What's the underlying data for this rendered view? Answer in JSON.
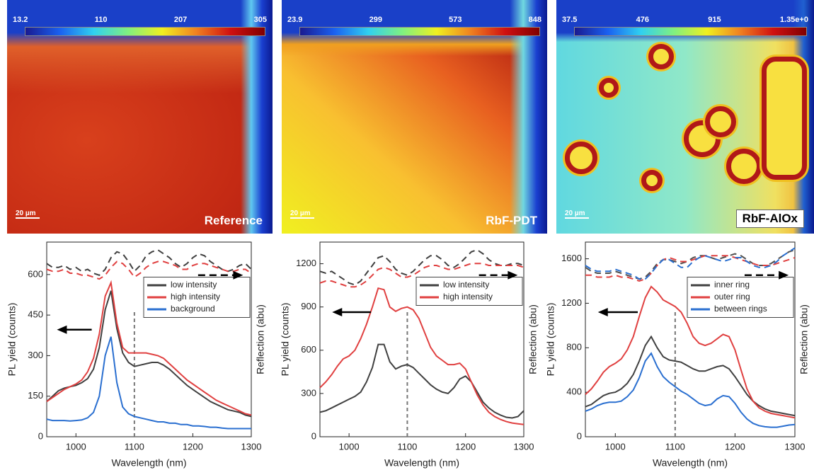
{
  "maps": [
    {
      "colorbar_labels": [
        "13.2",
        "110",
        "207",
        "305"
      ],
      "scale_bar": "20 µm",
      "label": "Reference"
    },
    {
      "colorbar_labels": [
        "23.9",
        "299",
        "573",
        "848"
      ],
      "scale_bar": "20 µm",
      "label": "RbF-PDT"
    },
    {
      "colorbar_labels": [
        "37.5",
        "476",
        "915",
        "1.35e+0"
      ],
      "scale_bar": "20 µm",
      "label": "RbF-AlOx"
    }
  ],
  "chart_data": [
    {
      "type": "line",
      "xlabel": "Wavelength (nm)",
      "ylabel": "PL yield (counts)",
      "y2label": "Reflection (abu)",
      "xlim": [
        950,
        1300
      ],
      "xticks": [
        1000,
        1100,
        1200,
        1300
      ],
      "ylim": [
        0,
        720
      ],
      "yticks": [
        0,
        150,
        300,
        450,
        600
      ],
      "y2lim": [
        0,
        1
      ],
      "vline": 1100,
      "legend": "right",
      "x": [
        950,
        960,
        970,
        980,
        990,
        1000,
        1010,
        1020,
        1030,
        1040,
        1050,
        1060,
        1070,
        1080,
        1090,
        1100,
        1110,
        1120,
        1130,
        1140,
        1150,
        1160,
        1170,
        1180,
        1190,
        1200,
        1210,
        1220,
        1230,
        1240,
        1250,
        1260,
        1270,
        1280,
        1290,
        1300
      ],
      "series": [
        {
          "name": "low intensity",
          "color": "#404040",
          "values": [
            130,
            150,
            170,
            180,
            185,
            190,
            200,
            215,
            250,
            330,
            470,
            540,
            400,
            310,
            275,
            260,
            265,
            270,
            275,
            275,
            265,
            250,
            230,
            210,
            190,
            175,
            160,
            145,
            130,
            120,
            110,
            100,
            95,
            90,
            80,
            75
          ]
        },
        {
          "name": "high intensity",
          "color": "#e04040",
          "values": [
            130,
            145,
            160,
            175,
            185,
            195,
            210,
            240,
            290,
            380,
            520,
            570,
            420,
            330,
            310,
            310,
            310,
            310,
            305,
            300,
            290,
            270,
            250,
            230,
            210,
            195,
            180,
            165,
            150,
            135,
            125,
            115,
            105,
            95,
            85,
            80
          ]
        },
        {
          "name": "background",
          "color": "#2a6fd0",
          "values": [
            65,
            60,
            60,
            60,
            58,
            60,
            62,
            70,
            90,
            150,
            300,
            370,
            200,
            110,
            85,
            75,
            70,
            65,
            60,
            55,
            55,
            50,
            50,
            45,
            45,
            40,
            40,
            38,
            35,
            35,
            32,
            30,
            30,
            30,
            30,
            30
          ]
        },
        {
          "axis": "y2",
          "linestyle": "dashed",
          "color": "#404040",
          "values": [
            0.89,
            0.87,
            0.87,
            0.88,
            0.86,
            0.87,
            0.85,
            0.86,
            0.84,
            0.83,
            0.86,
            0.92,
            0.95,
            0.94,
            0.9,
            0.85,
            0.88,
            0.93,
            0.95,
            0.96,
            0.94,
            0.92,
            0.89,
            0.87,
            0.89,
            0.92,
            0.94,
            0.93,
            0.9,
            0.88,
            0.86,
            0.85,
            0.86,
            0.88,
            0.89,
            0.86
          ]
        },
        {
          "axis": "y2",
          "linestyle": "dashed",
          "color": "#e04040",
          "values": [
            0.86,
            0.85,
            0.85,
            0.86,
            0.84,
            0.84,
            0.83,
            0.83,
            0.82,
            0.81,
            0.83,
            0.87,
            0.9,
            0.89,
            0.86,
            0.82,
            0.84,
            0.87,
            0.89,
            0.9,
            0.9,
            0.89,
            0.88,
            0.86,
            0.86,
            0.88,
            0.89,
            0.89,
            0.88,
            0.87,
            0.86,
            0.85,
            0.85,
            0.86,
            0.86,
            0.84
          ]
        }
      ]
    },
    {
      "type": "line",
      "xlabel": "Wavelength (nm)",
      "ylabel": "PL yield (counts)",
      "y2label": "Reflection (abu)",
      "xlim": [
        950,
        1300
      ],
      "xticks": [
        1000,
        1100,
        1200,
        1300
      ],
      "ylim": [
        0,
        1350
      ],
      "yticks": [
        0,
        300,
        600,
        900,
        1200
      ],
      "y2lim": [
        0,
        1
      ],
      "vline": 1100,
      "legend": "right",
      "x": [
        950,
        960,
        970,
        980,
        990,
        1000,
        1010,
        1020,
        1030,
        1040,
        1050,
        1060,
        1070,
        1080,
        1090,
        1100,
        1110,
        1120,
        1130,
        1140,
        1150,
        1160,
        1170,
        1180,
        1190,
        1200,
        1210,
        1220,
        1230,
        1240,
        1250,
        1260,
        1270,
        1280,
        1290,
        1300
      ],
      "series": [
        {
          "name": "low intensity",
          "color": "#404040",
          "values": [
            170,
            180,
            200,
            220,
            240,
            260,
            280,
            310,
            380,
            480,
            640,
            640,
            520,
            470,
            490,
            500,
            480,
            440,
            400,
            360,
            330,
            310,
            300,
            340,
            400,
            420,
            380,
            310,
            240,
            200,
            170,
            150,
            135,
            130,
            140,
            180
          ]
        },
        {
          "name": "high intensity",
          "color": "#e04040",
          "values": [
            340,
            380,
            430,
            490,
            540,
            560,
            600,
            680,
            780,
            900,
            1030,
            1020,
            900,
            870,
            890,
            900,
            880,
            820,
            720,
            620,
            560,
            530,
            500,
            500,
            510,
            470,
            380,
            290,
            220,
            170,
            140,
            120,
            105,
            95,
            90,
            85
          ]
        },
        {
          "axis": "y2",
          "linestyle": "dashed",
          "color": "#404040",
          "values": [
            0.85,
            0.84,
            0.85,
            0.83,
            0.81,
            0.79,
            0.78,
            0.8,
            0.84,
            0.88,
            0.92,
            0.93,
            0.9,
            0.86,
            0.84,
            0.83,
            0.85,
            0.88,
            0.91,
            0.93,
            0.93,
            0.91,
            0.88,
            0.87,
            0.89,
            0.92,
            0.95,
            0.96,
            0.94,
            0.91,
            0.89,
            0.88,
            0.88,
            0.89,
            0.89,
            0.88
          ]
        },
        {
          "axis": "y2",
          "linestyle": "dashed",
          "color": "#e04040",
          "values": [
            0.79,
            0.8,
            0.8,
            0.79,
            0.78,
            0.77,
            0.77,
            0.78,
            0.8,
            0.83,
            0.86,
            0.87,
            0.86,
            0.84,
            0.82,
            0.82,
            0.83,
            0.85,
            0.87,
            0.88,
            0.88,
            0.87,
            0.86,
            0.86,
            0.87,
            0.88,
            0.89,
            0.89,
            0.89,
            0.88,
            0.88,
            0.88,
            0.88,
            0.88,
            0.88,
            0.87
          ]
        }
      ]
    },
    {
      "type": "line",
      "xlabel": "Wavelength (nm)",
      "ylabel": "PL yield (counts)",
      "y2label": "Reflection (abu)",
      "xlim": [
        950,
        1300
      ],
      "xticks": [
        1000,
        1100,
        1200,
        1300
      ],
      "ylim": [
        0,
        1750
      ],
      "yticks": [
        0,
        400,
        800,
        1200,
        1600
      ],
      "y2lim": [
        0,
        1
      ],
      "vline": 1100,
      "legend": "right",
      "x": [
        950,
        960,
        970,
        980,
        990,
        1000,
        1010,
        1020,
        1030,
        1040,
        1050,
        1060,
        1070,
        1080,
        1090,
        1100,
        1110,
        1120,
        1130,
        1140,
        1150,
        1160,
        1170,
        1180,
        1190,
        1200,
        1210,
        1220,
        1230,
        1240,
        1250,
        1260,
        1270,
        1280,
        1290,
        1300
      ],
      "series": [
        {
          "name": "inner ring",
          "color": "#404040",
          "values": [
            270,
            290,
            330,
            370,
            390,
            400,
            430,
            480,
            560,
            680,
            820,
            900,
            800,
            720,
            690,
            680,
            670,
            640,
            610,
            590,
            590,
            610,
            630,
            640,
            610,
            540,
            460,
            380,
            320,
            280,
            250,
            230,
            220,
            210,
            200,
            190
          ]
        },
        {
          "name": "outer ring",
          "color": "#e04040",
          "values": [
            380,
            430,
            500,
            580,
            630,
            660,
            700,
            780,
            900,
            1080,
            1250,
            1350,
            1300,
            1230,
            1200,
            1170,
            1120,
            1020,
            900,
            840,
            820,
            840,
            880,
            920,
            900,
            780,
            600,
            430,
            320,
            260,
            230,
            210,
            200,
            190,
            180,
            170
          ]
        },
        {
          "name": "between rings",
          "color": "#2a6fd0",
          "values": [
            230,
            250,
            280,
            300,
            310,
            310,
            320,
            360,
            420,
            530,
            680,
            750,
            630,
            540,
            490,
            450,
            410,
            380,
            340,
            300,
            280,
            290,
            340,
            370,
            360,
            300,
            220,
            160,
            120,
            100,
            90,
            85,
            85,
            95,
            105,
            110
          ]
        },
        {
          "axis": "y2",
          "linestyle": "dashed",
          "color": "#505050",
          "values": [
            0.87,
            0.85,
            0.84,
            0.84,
            0.84,
            0.85,
            0.84,
            0.83,
            0.82,
            0.81,
            0.82,
            0.85,
            0.89,
            0.91,
            0.91,
            0.9,
            0.89,
            0.9,
            0.92,
            0.93,
            0.93,
            0.92,
            0.91,
            0.92,
            0.93,
            0.94,
            0.93,
            0.91,
            0.89,
            0.88,
            0.88,
            0.89,
            0.91,
            0.93,
            0.95,
            0.96
          ]
        },
        {
          "axis": "y2",
          "linestyle": "dashed",
          "color": "#e04040",
          "values": [
            0.83,
            0.83,
            0.82,
            0.82,
            0.82,
            0.83,
            0.82,
            0.82,
            0.81,
            0.8,
            0.81,
            0.84,
            0.88,
            0.91,
            0.92,
            0.91,
            0.9,
            0.9,
            0.91,
            0.92,
            0.93,
            0.93,
            0.93,
            0.93,
            0.93,
            0.92,
            0.91,
            0.9,
            0.89,
            0.88,
            0.88,
            0.88,
            0.89,
            0.9,
            0.91,
            0.92
          ]
        },
        {
          "axis": "y2",
          "linestyle": "dashed",
          "color": "#2a6fd0",
          "values": [
            0.88,
            0.86,
            0.85,
            0.85,
            0.85,
            0.86,
            0.85,
            0.84,
            0.83,
            0.81,
            0.81,
            0.84,
            0.88,
            0.91,
            0.91,
            0.89,
            0.87,
            0.87,
            0.9,
            0.92,
            0.93,
            0.92,
            0.91,
            0.9,
            0.91,
            0.92,
            0.92,
            0.9,
            0.88,
            0.87,
            0.87,
            0.88,
            0.9,
            0.93,
            0.95,
            0.97
          ]
        }
      ]
    }
  ]
}
